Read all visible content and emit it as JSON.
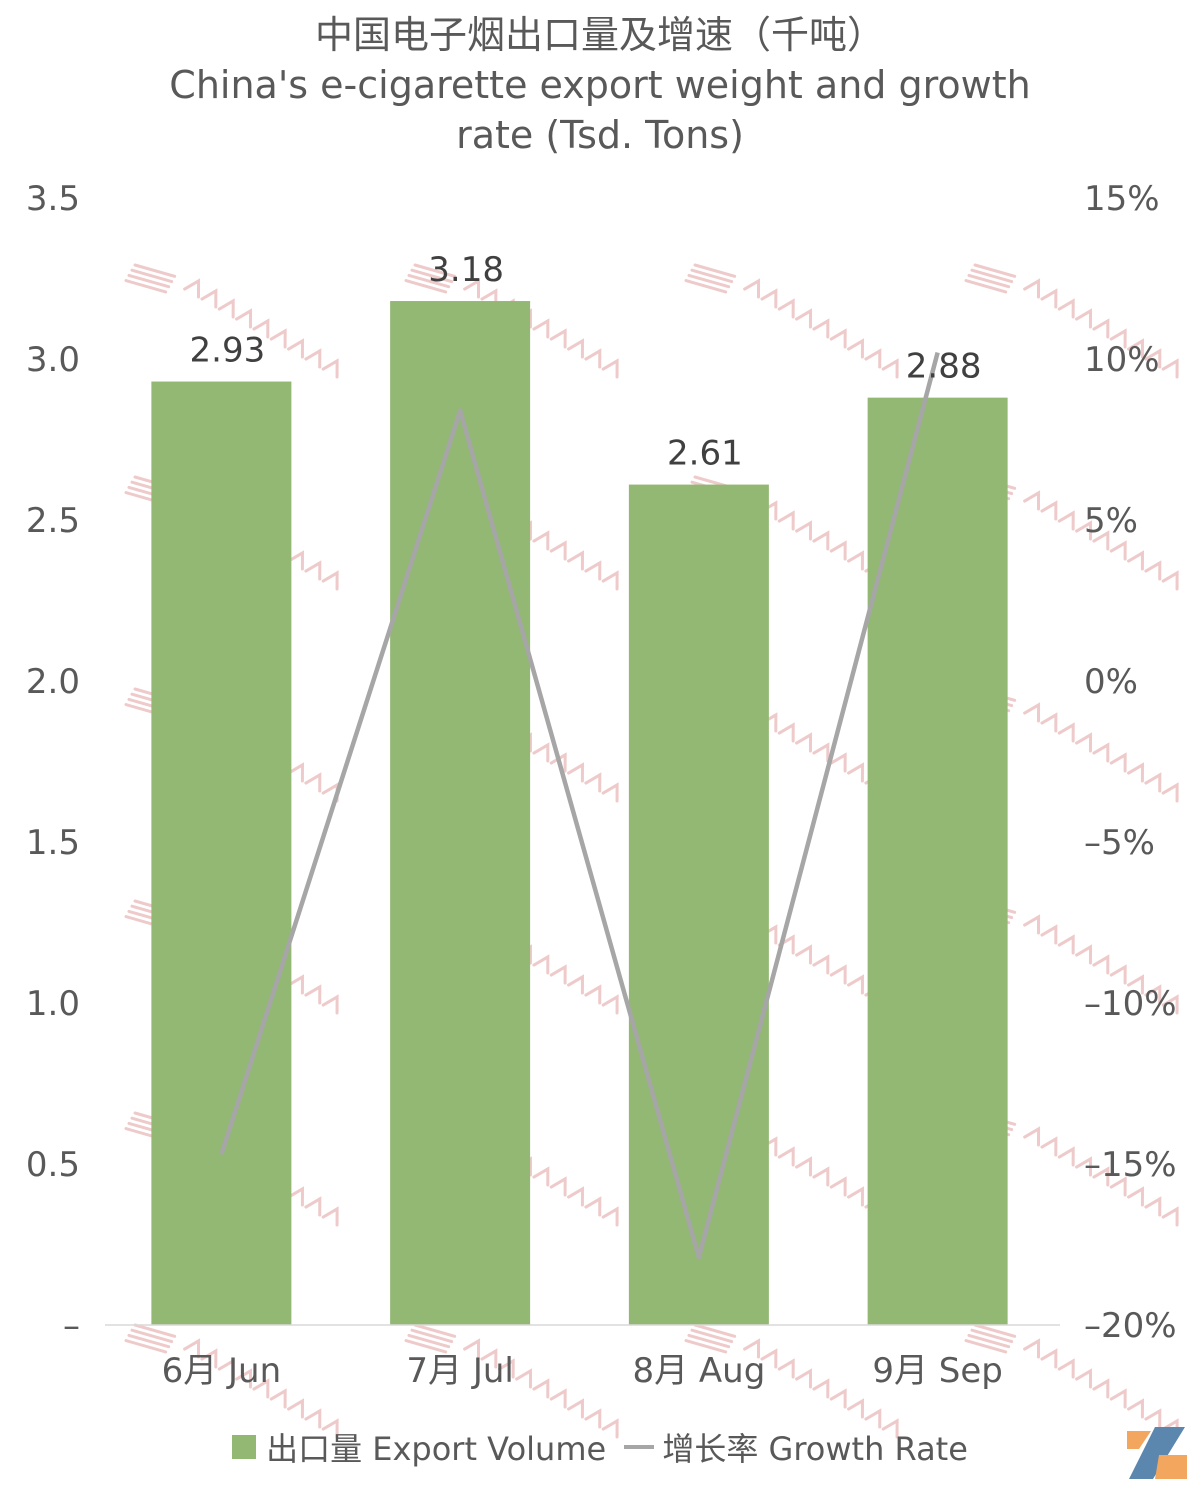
{
  "title_cn": "中国电子烟出口量及增速（千吨）",
  "title_en": "China's e-cigarette export weight and growth rate (Tsd. Tons)",
  "watermark": "2FIRSTS 两个至上",
  "colors": {
    "bar": "#93b874",
    "line": "#a6a6a6",
    "watermark": "#e8b4b4"
  },
  "chart_data": {
    "type": "bar",
    "categories": [
      "6月 Jun",
      "7月 Jul",
      "8月 Aug",
      "9月 Sep"
    ],
    "series": [
      {
        "name": "出口量 Export Volume",
        "type": "bar",
        "axis": "left",
        "values": [
          2.93,
          3.18,
          2.61,
          2.88
        ],
        "labels": [
          "2.93",
          "3.18",
          "2.61",
          "2.88"
        ]
      },
      {
        "name": "增长率 Growth Rate",
        "type": "line",
        "axis": "right",
        "values": [
          -14.7,
          8.4,
          -17.9,
          10.2
        ]
      }
    ],
    "left_axis": {
      "range": [
        0,
        3.5
      ],
      "ticks": [
        "–",
        "0.5",
        "1.0",
        "1.5",
        "2.0",
        "2.5",
        "3.0",
        "3.5"
      ]
    },
    "right_axis": {
      "range": [
        -20,
        15
      ],
      "ticks": [
        "–20%",
        "–15%",
        "–10%",
        "–5%",
        "0%",
        "5%",
        "10%",
        "15%"
      ]
    },
    "legend": [
      "出口量 Export Volume",
      "增长率 Growth Rate"
    ],
    "legend_position": "bottom",
    "grid": false
  }
}
